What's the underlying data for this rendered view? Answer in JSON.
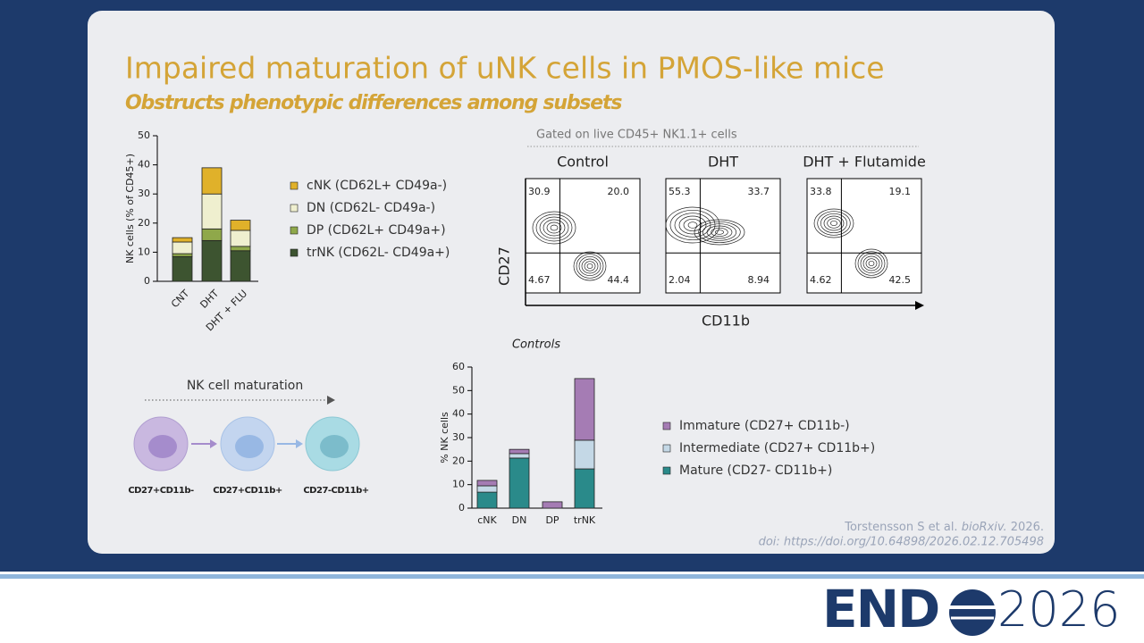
{
  "title": "Impaired maturation of uNK cells in PMOS-like mice",
  "subtitle": "Obstructs phenotypic differences among subsets",
  "chart_data": [
    {
      "type": "bar",
      "stacked": true,
      "y_label": "NK cells (% of CD45+)",
      "categories": [
        "CNT",
        "DHT",
        "DHT + FLU"
      ],
      "series": [
        {
          "name": "cNK (CD62L+ CD49a-)",
          "color": "#e0b12a",
          "values": [
            1.5,
            9,
            3.5
          ]
        },
        {
          "name": "DN (CD62L- CD49a-)",
          "color": "#efefcf",
          "values": [
            4,
            12,
            5.5
          ]
        },
        {
          "name": "DP (CD62L+ CD49a+)",
          "color": "#8fa84a",
          "values": [
            1,
            4,
            1.5
          ]
        },
        {
          "name": "trNK (CD62L- CD49a+)",
          "color": "#3d5430",
          "values": [
            8.5,
            14,
            10.5
          ]
        }
      ],
      "ylim": [
        0,
        50
      ],
      "yticks": [
        0,
        10,
        20,
        30,
        40,
        50
      ]
    },
    {
      "type": "bar",
      "stacked": true,
      "title": "Controls",
      "y_label": "% NK cells",
      "categories": [
        "cNK",
        "DN",
        "DP",
        "trNK"
      ],
      "series": [
        {
          "name": "Immature (CD27+ CD11b-)",
          "color": "#a57cb4",
          "values": [
            2.3,
            1.8,
            2.7,
            26.2
          ]
        },
        {
          "name": "Intermediate (CD27+ CD11b+)",
          "color": "#c4d8e6",
          "values": [
            2.7,
            1.9,
            0,
            12.2
          ]
        },
        {
          "name": "Mature (CD27- CD11b+)",
          "color": "#2a8a8a",
          "values": [
            6.8,
            21.3,
            0,
            16.7
          ]
        }
      ],
      "ylim": [
        0,
        60
      ],
      "yticks": [
        0,
        10,
        20,
        30,
        40,
        50,
        60
      ]
    }
  ],
  "flow": {
    "header": "Gated on live CD45+ NK1.1+ cells",
    "x_label": "CD11b",
    "y_label": "CD27",
    "panels": [
      {
        "title": "Control",
        "quadrants": [
          "30.9",
          "20.0",
          "4.67",
          "44.4"
        ]
      },
      {
        "title": "DHT",
        "quadrants": [
          "55.3",
          "33.7",
          "2.04",
          "8.94"
        ]
      },
      {
        "title": "DHT + Flutamide",
        "quadrants": [
          "33.8",
          "19.1",
          "4.62",
          "42.5"
        ]
      }
    ]
  },
  "maturation": {
    "title": "NK cell maturation",
    "stages": [
      "CD27+CD11b-",
      "CD27+CD11b+",
      "CD27-CD11b+"
    ]
  },
  "citation": {
    "authors": "Torstensson S et al.",
    "journal": "bioRxiv.",
    "year": "2026.",
    "doi": "doi: https://doi.org/10.64898/2026.02.12.705498"
  },
  "logo": {
    "name": "END",
    "year": "2026"
  }
}
